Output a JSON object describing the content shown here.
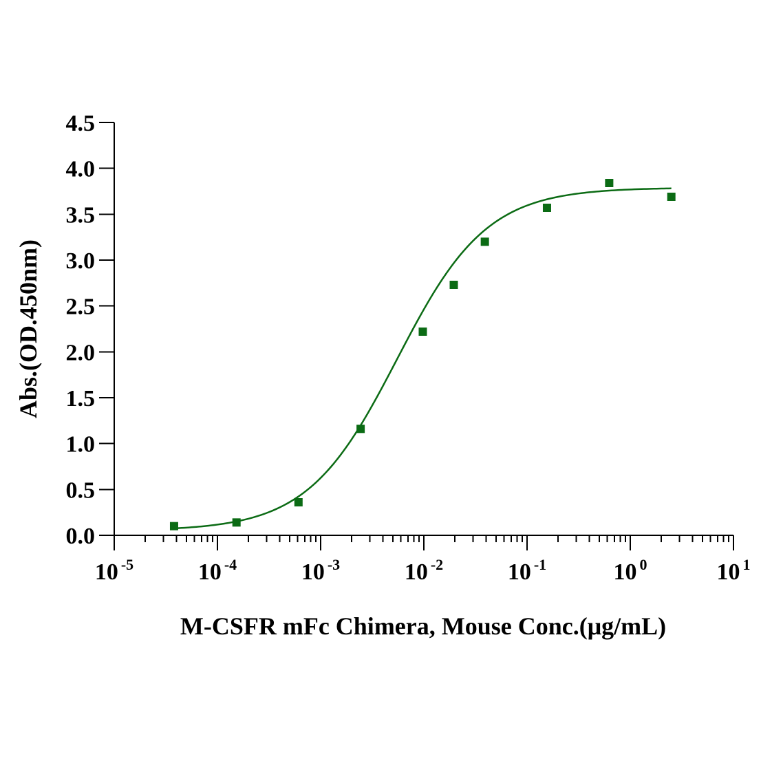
{
  "chart_data": {
    "type": "scatter",
    "title": "",
    "xlabel": "M-CSFR mFc Chimera, Mouse Conc.(μg/mL)",
    "ylabel": "Abs.(OD.450nm)",
    "xscale": "log",
    "xlim": [
      1e-05,
      10
    ],
    "ylim": [
      0,
      4.5
    ],
    "x_ticks": [
      {
        "base": "10",
        "exp": "-5"
      },
      {
        "base": "10",
        "exp": "-4"
      },
      {
        "base": "10",
        "exp": "-3"
      },
      {
        "base": "10",
        "exp": "-2"
      },
      {
        "base": "10",
        "exp": "-1"
      },
      {
        "base": "10",
        "exp": "0"
      },
      {
        "base": "10",
        "exp": "1"
      }
    ],
    "y_ticks": [
      "0.0",
      "0.5",
      "1.0",
      "1.5",
      "2.0",
      "2.5",
      "3.0",
      "3.5",
      "4.0",
      "4.5"
    ],
    "grid": false,
    "series": [
      {
        "name": "M-CSFR mFc Chimera, Mouse",
        "color": "#0b6b14",
        "marker": "square",
        "x": [
          3.8e-05,
          0.000153,
          0.00061,
          0.00244,
          0.00977,
          0.0195,
          0.039,
          0.156,
          0.625,
          2.5
        ],
        "y": [
          0.1,
          0.14,
          0.36,
          1.16,
          2.22,
          2.73,
          3.2,
          3.57,
          3.84,
          3.69
        ]
      }
    ],
    "fit": {
      "model": "4PL",
      "bottom": 0.05,
      "top": 3.79,
      "ec50": 0.0055,
      "hill": 1.0,
      "x_range": [
        3.8e-05,
        2.5
      ],
      "color": "#0b6b14"
    }
  }
}
